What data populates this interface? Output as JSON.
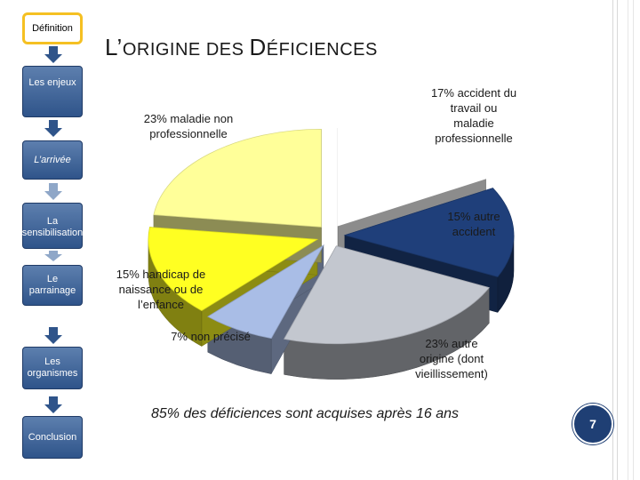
{
  "nav": {
    "items": [
      {
        "label": "Définition",
        "active": true
      },
      {
        "label": "Les enjeux"
      },
      {
        "label": "L’arrivée"
      },
      {
        "label": "La sensibilisation"
      },
      {
        "label": "Le parrainage"
      },
      {
        "label": "Les organismes"
      },
      {
        "label": "Conclusion"
      }
    ]
  },
  "title": {
    "first_letter": "L’",
    "rest": "ORIGINE DES ",
    "accent_letter": "D",
    "tail": "ÉFICIENCES"
  },
  "chart_data": {
    "type": "pie",
    "three_d": true,
    "exploded": true,
    "slices": [
      {
        "label": "17% accident du travail ou maladie professionnelle",
        "value": 17,
        "color": "#ffffff"
      },
      {
        "label": "15% autre accident",
        "value": 15,
        "color": "#1f3f7a"
      },
      {
        "label": "23% autre origine (dont vieillissement)",
        "value": 23,
        "color": "#c3c7cf"
      },
      {
        "label": "7% non précisé",
        "value": 7,
        "color": "#a9bde6"
      },
      {
        "label": "15% handicap de naissance ou de l’enfance",
        "value": 15,
        "color": "#ffff22"
      },
      {
        "label": "23% maladie non professionnelle",
        "value": 23,
        "color": "#ffff99"
      }
    ]
  },
  "footnote": "85% des déficiences sont acquises après 16 ans",
  "page_number": "7"
}
